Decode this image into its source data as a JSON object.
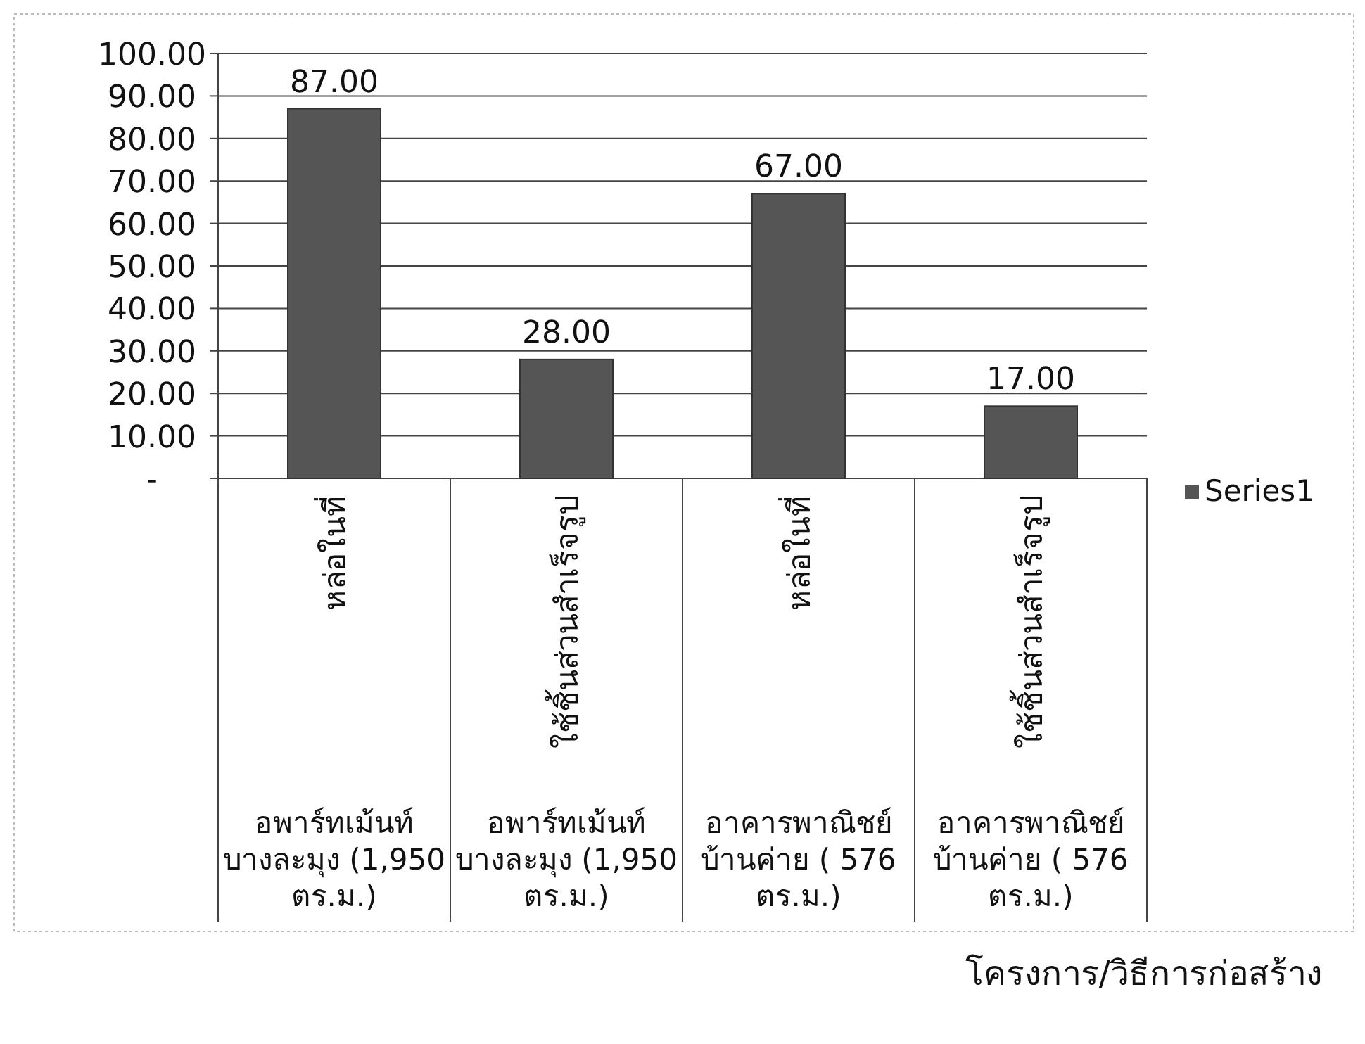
{
  "chart_data": {
    "type": "bar",
    "categories": [
      "หล่อในที่",
      "ใช้ชิ้นส่วนสำเร็จรูป",
      "หล่อในที่",
      "ใช้ชิ้นส่วนสำเร็จรูป"
    ],
    "annotations": [
      "อพาร์ทเม้นท์ บางละมุง (1,950 ตร.ม.)",
      "อพาร์ทเม้นท์ บางละมุง (1,950 ตร.ม.)",
      "อาคารพาณิชย์ บ้านค่าย ( 576 ตร.ม.)",
      "อาคารพาณิชย์ บ้านค่าย ( 576 ตร.ม.)",
      "โครงการ/วิธีการก่อสร้าง"
    ],
    "series": [
      {
        "name": "Series1",
        "color": "#555555",
        "values": [
          87,
          28,
          67,
          17
        ],
        "value_labels": [
          "87.00",
          "28.00",
          "67.00",
          "17.00"
        ]
      }
    ],
    "ylim": [
      0,
      100
    ],
    "yticks": [
      {
        "value": 0,
        "label": "-"
      },
      {
        "value": 10,
        "label": "10.00"
      },
      {
        "value": 20,
        "label": "20.00"
      },
      {
        "value": 30,
        "label": "30.00"
      },
      {
        "value": 40,
        "label": "40.00"
      },
      {
        "value": 50,
        "label": "50.00"
      },
      {
        "value": 60,
        "label": "60.00"
      },
      {
        "value": 70,
        "label": "70.00"
      },
      {
        "value": 80,
        "label": "80.00"
      },
      {
        "value": 90,
        "label": "90.00"
      },
      {
        "value": 100,
        "label": "100.00"
      }
    ],
    "grid": "y",
    "legend": "right"
  }
}
